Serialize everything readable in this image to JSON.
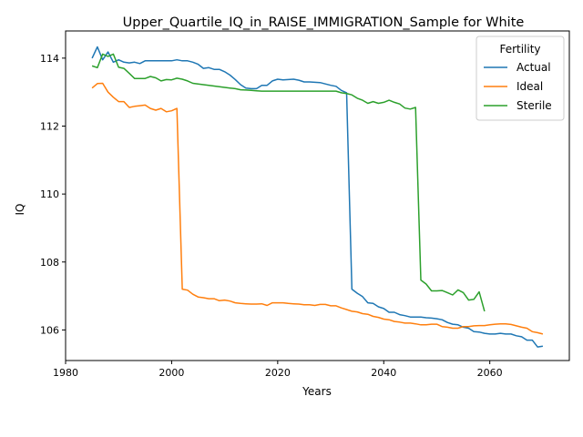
{
  "chart_data": {
    "type": "line",
    "title": "Upper_Quartile_IQ_in_RAISE_IMMIGRATION_Sample for White",
    "xlabel": "Years",
    "ylabel": "IQ",
    "xlim": [
      1980,
      2075
    ],
    "ylim": [
      105.1,
      114.8
    ],
    "xticks": [
      1980,
      2000,
      2020,
      2040,
      2060
    ],
    "yticks": [
      106,
      108,
      110,
      112,
      114
    ],
    "grid": false,
    "legend": {
      "title": "Fertility",
      "position": "top-right"
    },
    "series": [
      {
        "name": "Actual",
        "color": "#1f77b4",
        "x": [
          1985,
          1986,
          1987,
          1988,
          1989,
          1990,
          1991,
          1992,
          1993,
          1994,
          1995,
          1996,
          1997,
          1998,
          1999,
          2000,
          2001,
          2002,
          2003,
          2004,
          2005,
          2006,
          2007,
          2008,
          2009,
          2010,
          2011,
          2012,
          2013,
          2014,
          2015,
          2016,
          2017,
          2018,
          2019,
          2020,
          2021,
          2022,
          2023,
          2024,
          2025,
          2026,
          2027,
          2028,
          2029,
          2030,
          2031,
          2032,
          2033,
          2034,
          2035,
          2036,
          2037,
          2038,
          2039,
          2040,
          2041,
          2042,
          2043,
          2044,
          2045,
          2046,
          2047,
          2048,
          2049,
          2050,
          2051,
          2052,
          2053,
          2054,
          2055,
          2056,
          2057,
          2058,
          2059,
          2060,
          2061,
          2062,
          2063,
          2064,
          2065,
          2066,
          2067,
          2068,
          2069,
          2070
        ],
        "y": [
          114.0,
          114.33,
          113.95,
          114.18,
          113.88,
          113.95,
          113.88,
          113.86,
          113.88,
          113.84,
          113.92,
          113.92,
          113.92,
          113.92,
          113.92,
          113.92,
          113.95,
          113.92,
          113.92,
          113.88,
          113.82,
          113.7,
          113.72,
          113.67,
          113.67,
          113.6,
          113.5,
          113.37,
          113.22,
          113.12,
          113.1,
          113.1,
          113.2,
          113.2,
          113.33,
          113.38,
          113.36,
          113.37,
          113.38,
          113.35,
          113.3,
          113.3,
          113.29,
          113.28,
          113.24,
          113.2,
          113.17,
          113.05,
          112.98,
          107.2,
          107.08,
          106.98,
          106.8,
          106.78,
          106.68,
          106.63,
          106.52,
          106.52,
          106.45,
          106.42,
          106.38,
          106.38,
          106.38,
          106.36,
          106.35,
          106.33,
          106.3,
          106.22,
          106.17,
          106.15,
          106.08,
          106.05,
          105.95,
          105.94,
          105.9,
          105.88,
          105.88,
          105.9,
          105.88,
          105.88,
          105.83,
          105.8,
          105.7,
          105.7,
          105.5,
          105.52
        ]
      },
      {
        "name": "Ideal",
        "color": "#ff7f0e",
        "x": [
          1985,
          1986,
          1987,
          1988,
          1989,
          1990,
          1991,
          1992,
          1993,
          1994,
          1995,
          1996,
          1997,
          1998,
          1999,
          2000,
          2001,
          2002,
          2003,
          2004,
          2005,
          2006,
          2007,
          2008,
          2009,
          2010,
          2011,
          2012,
          2013,
          2014,
          2015,
          2016,
          2017,
          2018,
          2019,
          2020,
          2021,
          2022,
          2023,
          2024,
          2025,
          2026,
          2027,
          2028,
          2029,
          2030,
          2031,
          2032,
          2033,
          2034,
          2035,
          2036,
          2037,
          2038,
          2039,
          2040,
          2041,
          2042,
          2043,
          2044,
          2045,
          2046,
          2047,
          2048,
          2049,
          2050,
          2051,
          2052,
          2053,
          2054,
          2055,
          2056,
          2057,
          2058,
          2059,
          2060,
          2061,
          2062,
          2063,
          2064,
          2065,
          2066,
          2067,
          2068,
          2069,
          2070
        ],
        "y": [
          113.12,
          113.25,
          113.26,
          113.0,
          112.85,
          112.72,
          112.72,
          112.55,
          112.58,
          112.6,
          112.62,
          112.52,
          112.47,
          112.52,
          112.42,
          112.45,
          112.52,
          107.2,
          107.17,
          107.05,
          106.97,
          106.95,
          106.92,
          106.92,
          106.86,
          106.88,
          106.85,
          106.8,
          106.78,
          106.77,
          106.76,
          106.76,
          106.77,
          106.72,
          106.8,
          106.8,
          106.8,
          106.78,
          106.77,
          106.76,
          106.74,
          106.74,
          106.72,
          106.75,
          106.75,
          106.71,
          106.71,
          106.65,
          106.6,
          106.55,
          106.53,
          106.48,
          106.46,
          106.4,
          106.37,
          106.32,
          106.3,
          106.25,
          106.23,
          106.2,
          106.2,
          106.18,
          106.15,
          106.15,
          106.17,
          106.17,
          106.1,
          106.08,
          106.05,
          106.05,
          106.1,
          106.1,
          106.12,
          106.13,
          106.13,
          106.15,
          106.17,
          106.18,
          106.18,
          106.16,
          106.12,
          106.08,
          106.05,
          105.95,
          105.92,
          105.88
        ]
      },
      {
        "name": "Sterile",
        "color": "#2ca02c",
        "x": [
          1985,
          1986,
          1987,
          1988,
          1989,
          1990,
          1991,
          1992,
          1993,
          1994,
          1995,
          1996,
          1997,
          1998,
          1999,
          2000,
          2001,
          2002,
          2003,
          2004,
          2005,
          2006,
          2007,
          2008,
          2009,
          2010,
          2011,
          2012,
          2013,
          2014,
          2015,
          2016,
          2017,
          2018,
          2019,
          2020,
          2021,
          2022,
          2023,
          2024,
          2025,
          2026,
          2027,
          2028,
          2029,
          2030,
          2031,
          2032,
          2033,
          2034,
          2035,
          2036,
          2037,
          2038,
          2039,
          2040,
          2041,
          2042,
          2043,
          2044,
          2045,
          2046,
          2047,
          2048,
          2049,
          2050,
          2051,
          2052,
          2053,
          2054,
          2055,
          2056,
          2057,
          2058,
          2059
        ],
        "y": [
          113.77,
          113.72,
          114.12,
          114.05,
          114.12,
          113.73,
          113.7,
          113.55,
          113.4,
          113.4,
          113.4,
          113.46,
          113.42,
          113.33,
          113.37,
          113.36,
          113.41,
          113.38,
          113.33,
          113.26,
          113.24,
          113.22,
          113.2,
          113.18,
          113.16,
          113.14,
          113.12,
          113.1,
          113.07,
          113.06,
          113.05,
          113.04,
          113.03,
          113.03,
          113.03,
          113.03,
          113.03,
          113.03,
          113.03,
          113.03,
          113.03,
          113.03,
          113.03,
          113.03,
          113.03,
          113.03,
          113.03,
          112.98,
          112.96,
          112.92,
          112.82,
          112.76,
          112.67,
          112.72,
          112.67,
          112.7,
          112.76,
          112.7,
          112.65,
          112.53,
          112.5,
          112.55,
          107.47,
          107.35,
          107.15,
          107.15,
          107.16,
          107.1,
          107.03,
          107.18,
          107.1,
          106.88,
          106.9,
          107.12,
          106.55
        ]
      }
    ]
  }
}
